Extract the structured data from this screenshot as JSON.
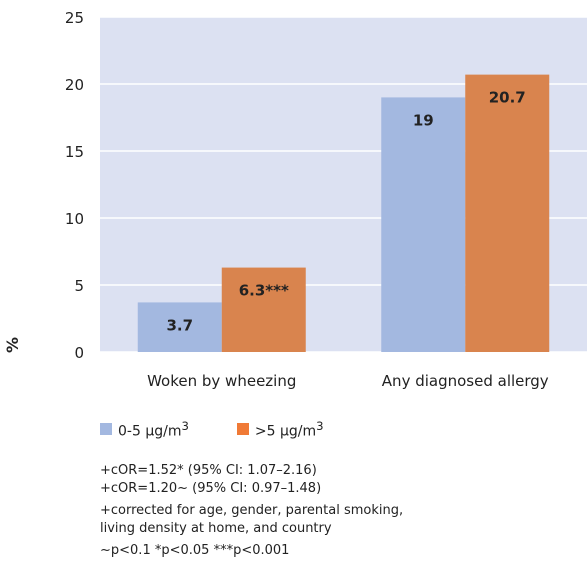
{
  "chart_data": {
    "type": "bar",
    "categories": [
      "Woken by wheezing",
      "Any diagnosed allergy"
    ],
    "series": [
      {
        "name": "0-5 µg/m³",
        "color": "#a3b8e0",
        "values": [
          3.7,
          19
        ],
        "labels": [
          "3.7",
          "19"
        ]
      },
      {
        "name": ">5 µg/m³",
        "color": "#d9844e",
        "values": [
          6.3,
          20.7
        ],
        "labels": [
          "6.3***",
          "20.7"
        ]
      }
    ],
    "ylabel": "%",
    "ylim": [
      0,
      25
    ],
    "yticks": [
      "0",
      "5",
      "10",
      "15",
      "20",
      "25"
    ],
    "grid": true,
    "plot_background": "#dce1f2"
  },
  "legend": {
    "item1": {
      "base": "0-5 µg/m",
      "sup": "3",
      "color": "#a3b8e0"
    },
    "item2": {
      "base": ">5 µg/m",
      "sup": "3",
      "color": "#f07a36"
    }
  },
  "notes": {
    "line1": "+cOR=1.52* (95% CI: 1.07–2.16)",
    "line2": "+cOR=1.20~ (95% CI: 0.97–1.48)",
    "line3": "+corrected for age, gender, parental smoking,",
    "line4": "living density at home, and country",
    "line5": "~p<0.1 *p<0.05 ***p<0.001"
  }
}
